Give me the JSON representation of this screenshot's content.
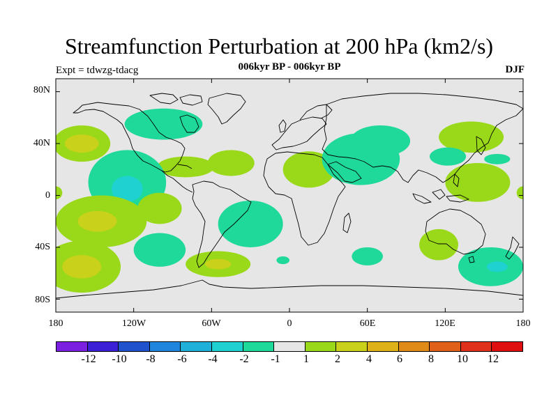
{
  "title": "Streamfunction Perturbation at 200 hPa (km2/s)",
  "subtitle": "006kyr BP - 006kyr BP",
  "experiment_label": "Expt = tdwzg-tdacg",
  "season_label": "DJF",
  "y_ticks": [
    "80N",
    "40N",
    "0",
    "40S",
    "80S"
  ],
  "x_ticks": [
    "180",
    "120W",
    "60W",
    "0",
    "60E",
    "120E",
    "180"
  ],
  "colorbar": {
    "colors": [
      "#7b1fe0",
      "#3a1fd6",
      "#1f52cc",
      "#1f86dd",
      "#1fb0d9",
      "#1fd1d1",
      "#1fd99b",
      "#e6e6e6",
      "#9ad919",
      "#c9d11a",
      "#deb119",
      "#e08a17",
      "#e0601a",
      "#e0321a",
      "#e00f0f"
    ],
    "labels": [
      "-12",
      "-10",
      "-8",
      "-6",
      "-4",
      "-2",
      "-1",
      "1",
      "2",
      "4",
      "6",
      "8",
      "10",
      "12"
    ]
  },
  "map": {
    "background": "#e6e6e6",
    "blobs": [
      {
        "color": "#9ad919",
        "lon": -160,
        "lat": 40,
        "rx": 22,
        "ry": 14
      },
      {
        "color": "#c9d11a",
        "lon": -160,
        "lat": 40,
        "rx": 13,
        "ry": 7
      },
      {
        "color": "#9ad919",
        "lon": 140,
        "lat": 45,
        "rx": 25,
        "ry": 12
      },
      {
        "color": "#9ad919",
        "lon": -80,
        "lat": 22,
        "rx": 22,
        "ry": 8
      },
      {
        "color": "#9ad919",
        "lon": -45,
        "lat": 25,
        "rx": 18,
        "ry": 10
      },
      {
        "color": "#9ad919",
        "lon": 15,
        "lat": 20,
        "rx": 20,
        "ry": 14
      },
      {
        "color": "#1fd99b",
        "lon": -97,
        "lat": 55,
        "rx": 30,
        "ry": 12
      },
      {
        "color": "#1fd99b",
        "lon": 55,
        "lat": 28,
        "rx": 30,
        "ry": 20
      },
      {
        "color": "#1fd99b",
        "lon": 70,
        "lat": 42,
        "rx": 23,
        "ry": 12
      },
      {
        "color": "#1fd99b",
        "lon": 122,
        "lat": 30,
        "rx": 14,
        "ry": 7
      },
      {
        "color": "#9ad919",
        "lon": 145,
        "lat": 10,
        "rx": 25,
        "ry": 15
      },
      {
        "color": "#1fd99b",
        "lon": -125,
        "lat": 10,
        "rx": 30,
        "ry": 25
      },
      {
        "color": "#1fd1d1",
        "lon": -125,
        "lat": 5,
        "rx": 12,
        "ry": 10
      },
      {
        "color": "#9ad919",
        "lon": -145,
        "lat": -20,
        "rx": 35,
        "ry": 20
      },
      {
        "color": "#c9d11a",
        "lon": -148,
        "lat": -20,
        "rx": 15,
        "ry": 8
      },
      {
        "color": "#9ad919",
        "lon": -100,
        "lat": -10,
        "rx": 17,
        "ry": 12
      },
      {
        "color": "#1fd99b",
        "lon": -30,
        "lat": -22,
        "rx": 25,
        "ry": 18
      },
      {
        "color": "#1fd99b",
        "lon": -100,
        "lat": -42,
        "rx": 20,
        "ry": 13
      },
      {
        "color": "#9ad919",
        "lon": -160,
        "lat": -55,
        "rx": 30,
        "ry": 20
      },
      {
        "color": "#c9d11a",
        "lon": -160,
        "lat": -55,
        "rx": 15,
        "ry": 9
      },
      {
        "color": "#9ad919",
        "lon": -55,
        "lat": -53,
        "rx": 25,
        "ry": 10
      },
      {
        "color": "#c9d11a",
        "lon": -55,
        "lat": -53,
        "rx": 10,
        "ry": 4
      },
      {
        "color": "#1fd99b",
        "lon": -5,
        "lat": -50,
        "rx": 5,
        "ry": 3
      },
      {
        "color": "#1fd99b",
        "lon": 60,
        "lat": -47,
        "rx": 12,
        "ry": 7
      },
      {
        "color": "#9ad919",
        "lon": 115,
        "lat": -38,
        "rx": 15,
        "ry": 12
      },
      {
        "color": "#1fd99b",
        "lon": 155,
        "lat": -55,
        "rx": 25,
        "ry": 15
      },
      {
        "color": "#1fd1d1",
        "lon": 160,
        "lat": -55,
        "rx": 8,
        "ry": 4
      },
      {
        "color": "#1fd99b",
        "lon": 160,
        "lat": 28,
        "rx": 10,
        "ry": 4
      },
      {
        "color": "#1fd99b",
        "lon": -22,
        "lat": -10,
        "rx": 3,
        "ry": 3
      },
      {
        "color": "#9ad919",
        "lon": 180,
        "lat": 2,
        "rx": 5,
        "ry": 5
      },
      {
        "color": "#9ad919",
        "lon": -180,
        "lat": 2,
        "rx": 5,
        "ry": 5
      }
    ]
  }
}
